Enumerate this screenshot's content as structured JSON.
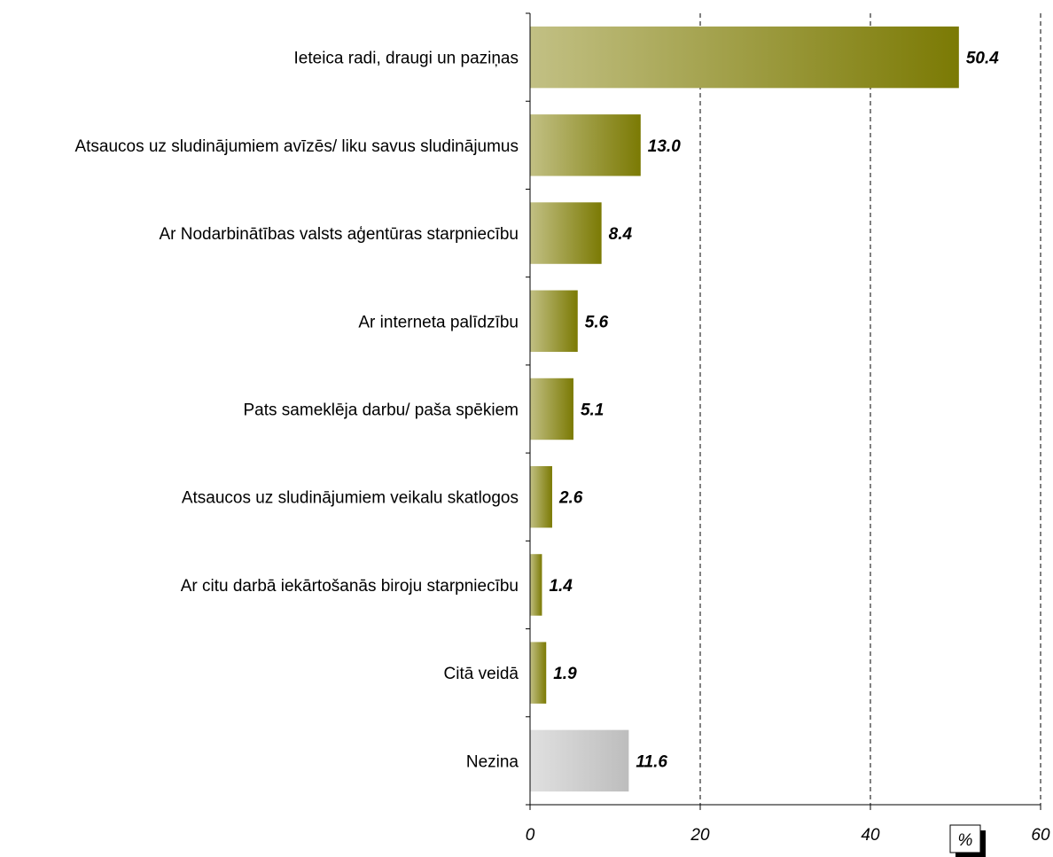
{
  "chart_data": {
    "type": "bar",
    "orientation": "horizontal",
    "categories": [
      "Ieteica radi, draugi un paziņas",
      "Atsaucos uz sludinājumiem avīzēs/ liku savus sludinājumus",
      "Ar Nodarbinātības valsts aģentūras starpniecību",
      "Ar interneta palīdzību",
      "Pats sameklēja darbu/ paša spēkiem",
      "Atsaucos uz sludinājumiem veikalu skatlogos",
      "Ar citu darbā iekārtošanās biroju starpniecību",
      "Citā veidā",
      "Nezina"
    ],
    "values": [
      50.4,
      13.0,
      8.4,
      5.6,
      5.1,
      2.6,
      1.4,
      1.9,
      11.6
    ],
    "value_labels": [
      "50.4",
      "13.0",
      "8.4",
      "5.6",
      "5.1",
      "2.6",
      "1.4",
      "1.9",
      "11.6"
    ],
    "xlim": [
      0,
      60
    ],
    "xticks": [
      0,
      20,
      40,
      60
    ],
    "xtick_labels": [
      "0",
      "20",
      "40",
      "60"
    ],
    "unit_label": "%",
    "grid": "vertical dashed",
    "colors": {
      "bar_light": "#c2c084",
      "bar_dark": "#7b7a04",
      "bar_neutral_light": "#e0e0e0",
      "bar_neutral_dark": "#bdbdbd"
    },
    "neutral_category_index": 8
  }
}
